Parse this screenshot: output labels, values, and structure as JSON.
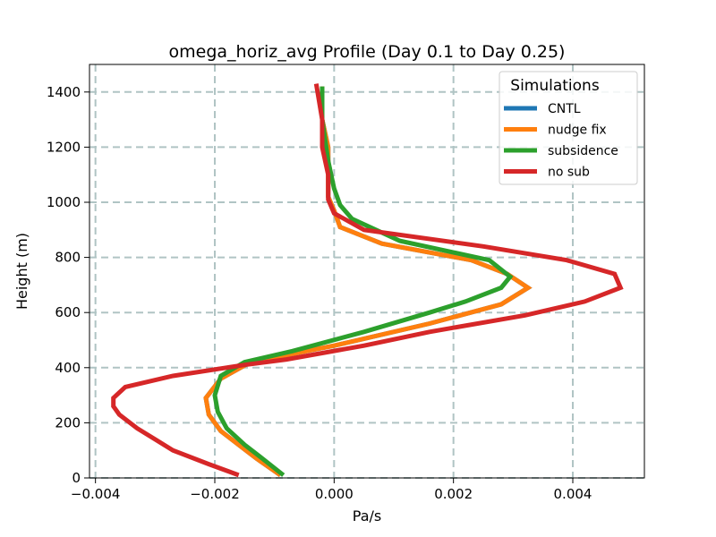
{
  "chart_data": {
    "type": "line",
    "title": "omega_horiz_avg Profile (Day 0.1 to Day 0.25)",
    "xlabel": "Pa/s",
    "ylabel": "Height (m)",
    "xlim": [
      -0.0041,
      0.0052
    ],
    "ylim": [
      0,
      1500
    ],
    "grid": true,
    "x_ticks": [
      -0.004,
      -0.002,
      0.0,
      0.002,
      0.004
    ],
    "x_tick_labels": [
      "−0.004",
      "−0.002",
      "0.000",
      "0.002",
      "0.004"
    ],
    "y_ticks": [
      0,
      200,
      400,
      600,
      800,
      1000,
      1200,
      1400
    ],
    "y_tick_labels": [
      "0",
      "200",
      "400",
      "600",
      "800",
      "1000",
      "1200",
      "1400"
    ],
    "legend": {
      "title": "Simulations",
      "placement": "upper-right"
    },
    "series": [
      {
        "name": "CNTL",
        "color": "#1f77b4",
        "points": [
          [
            -0.0009,
            10
          ],
          [
            -0.0013,
            70
          ],
          [
            -0.0016,
            120
          ],
          [
            -0.0019,
            170
          ],
          [
            -0.0021,
            230
          ],
          [
            -0.00215,
            290
          ],
          [
            -0.0019,
            360
          ],
          [
            -0.0014,
            420
          ],
          [
            0.0,
            480
          ],
          [
            0.0016,
            560
          ],
          [
            0.0028,
            630
          ],
          [
            0.00325,
            690
          ],
          [
            0.0029,
            740
          ],
          [
            0.0023,
            790
          ],
          [
            0.0008,
            850
          ],
          [
            0.0001,
            910
          ],
          [
            0.0,
            970
          ],
          [
            -0.0001,
            1020
          ],
          [
            -0.0001,
            1100
          ],
          [
            -0.0001,
            1200
          ],
          [
            -0.0002,
            1300
          ],
          [
            -0.0002,
            1420
          ]
        ]
      },
      {
        "name": "nudge fix",
        "color": "#ff7f0e",
        "points": [
          [
            -0.0009,
            10
          ],
          [
            -0.0013,
            70
          ],
          [
            -0.0016,
            120
          ],
          [
            -0.0019,
            170
          ],
          [
            -0.0021,
            230
          ],
          [
            -0.00215,
            290
          ],
          [
            -0.0019,
            360
          ],
          [
            -0.0014,
            420
          ],
          [
            0.0,
            480
          ],
          [
            0.0016,
            560
          ],
          [
            0.0028,
            630
          ],
          [
            0.00325,
            690
          ],
          [
            0.0029,
            740
          ],
          [
            0.0023,
            790
          ],
          [
            0.0008,
            850
          ],
          [
            0.0001,
            910
          ],
          [
            0.0,
            970
          ],
          [
            -0.0001,
            1020
          ],
          [
            -0.0001,
            1100
          ],
          [
            -0.0001,
            1200
          ],
          [
            -0.0002,
            1300
          ],
          [
            -0.0002,
            1420
          ]
        ]
      },
      {
        "name": "subsidence",
        "color": "#2ca02c",
        "points": [
          [
            -0.00085,
            10
          ],
          [
            -0.0012,
            70
          ],
          [
            -0.0015,
            120
          ],
          [
            -0.0018,
            180
          ],
          [
            -0.00195,
            240
          ],
          [
            -0.002,
            300
          ],
          [
            -0.0019,
            370
          ],
          [
            -0.0015,
            420
          ],
          [
            -0.0007,
            460
          ],
          [
            0.0005,
            530
          ],
          [
            0.0016,
            600
          ],
          [
            0.0022,
            640
          ],
          [
            0.0028,
            690
          ],
          [
            0.00295,
            730
          ],
          [
            0.0026,
            790
          ],
          [
            0.0011,
            860
          ],
          [
            0.0003,
            940
          ],
          [
            0.0001,
            990
          ],
          [
            0.0,
            1050
          ],
          [
            -0.0001,
            1150
          ],
          [
            -0.0002,
            1300
          ],
          [
            -0.0002,
            1420
          ]
        ]
      },
      {
        "name": "no sub",
        "color": "#d62728",
        "points": [
          [
            -0.0016,
            10
          ],
          [
            -0.0021,
            50
          ],
          [
            -0.0027,
            100
          ],
          [
            -0.003,
            140
          ],
          [
            -0.0033,
            180
          ],
          [
            -0.0036,
            230
          ],
          [
            -0.0037,
            260
          ],
          [
            -0.0037,
            290
          ],
          [
            -0.0035,
            330
          ],
          [
            -0.0027,
            370
          ],
          [
            -0.0015,
            410
          ],
          [
            -0.0008,
            430
          ],
          [
            0.0005,
            480
          ],
          [
            0.0016,
            530
          ],
          [
            0.0032,
            590
          ],
          [
            0.0042,
            640
          ],
          [
            0.0048,
            690
          ],
          [
            0.0047,
            740
          ],
          [
            0.0039,
            790
          ],
          [
            0.0025,
            840
          ],
          [
            0.0005,
            900
          ],
          [
            0.0,
            960
          ],
          [
            -0.0001,
            1010
          ],
          [
            -0.0001,
            1100
          ],
          [
            -0.0002,
            1200
          ],
          [
            -0.0002,
            1300
          ],
          [
            -0.0003,
            1430
          ]
        ]
      }
    ]
  }
}
